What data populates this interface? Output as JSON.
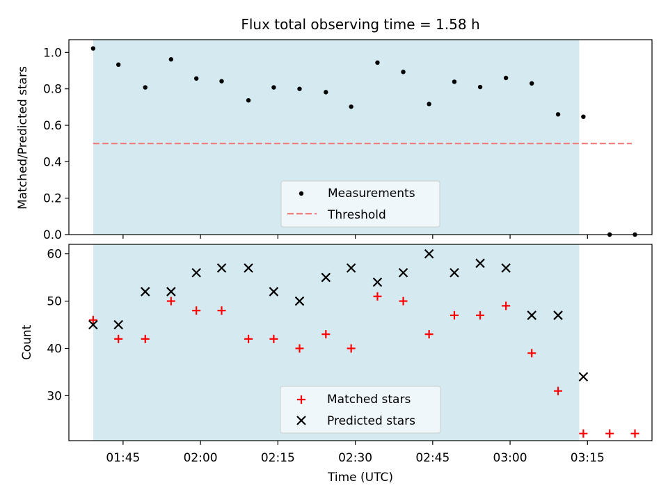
{
  "chart_data": {
    "title": "Flux total observing time = 1.58 h",
    "xlabel": "Time (UTC)",
    "x_ticks": [
      "01:45",
      "02:00",
      "02:15",
      "02:30",
      "02:45",
      "03:00",
      "03:15"
    ],
    "x_tick_minutes": [
      105,
      120,
      135,
      150,
      165,
      180,
      195
    ],
    "shaded_interval": {
      "start_min": 99.2,
      "end_min": 193.4,
      "color": "#d4eaf0"
    },
    "times_min": [
      99.2,
      104.1,
      109.3,
      114.3,
      119.2,
      124.1,
      129.3,
      134.2,
      139.2,
      144.3,
      149.2,
      154.3,
      159.3,
      164.3,
      169.2,
      174.2,
      179.2,
      184.2,
      189.3,
      194.2,
      199.3,
      204.2
    ],
    "panels": [
      {
        "type": "scatter",
        "ylabel": "Matched/Predicted stars",
        "ylim": [
          0.0,
          1.07
        ],
        "y_ticks": [
          "0.0",
          "0.2",
          "0.4",
          "0.6",
          "0.8",
          "1.0"
        ],
        "series": [
          {
            "name": "Measurements",
            "marker": "dot",
            "color": "#000000",
            "values": [
              1.022,
              0.933,
              0.808,
              0.962,
              0.857,
              0.842,
              0.737,
              0.808,
              0.8,
              0.782,
              0.702,
              0.944,
              0.893,
              0.717,
              0.839,
              0.81,
              0.86,
              0.83,
              0.66,
              0.647,
              0.0,
              0.0
            ]
          },
          {
            "name": "Threshold",
            "style": "dashed",
            "color": "#f08080",
            "x_range_min": [
              99.2,
              203.6
            ],
            "value": 0.5
          }
        ],
        "legend": "lower-center"
      },
      {
        "type": "scatter",
        "ylabel": "Count",
        "ylim": [
          20.5,
          62.0
        ],
        "y_ticks": [
          "30",
          "40",
          "50",
          "60"
        ],
        "series": [
          {
            "name": "Matched stars",
            "marker": "plus",
            "color": "#ff0000",
            "values": [
              46,
              42,
              42,
              50,
              48,
              48,
              42,
              42,
              40,
              43,
              40,
              51,
              50,
              43,
              47,
              47,
              49,
              39,
              31,
              22,
              22,
              22
            ]
          },
          {
            "name": "Predicted stars",
            "marker": "x",
            "color": "#000000",
            "values": [
              45,
              45,
              52,
              52,
              56,
              57,
              57,
              52,
              50,
              55,
              57,
              54,
              56,
              60,
              56,
              58,
              57,
              47,
              47,
              34
            ]
          }
        ],
        "legend": "lower-center"
      }
    ]
  }
}
